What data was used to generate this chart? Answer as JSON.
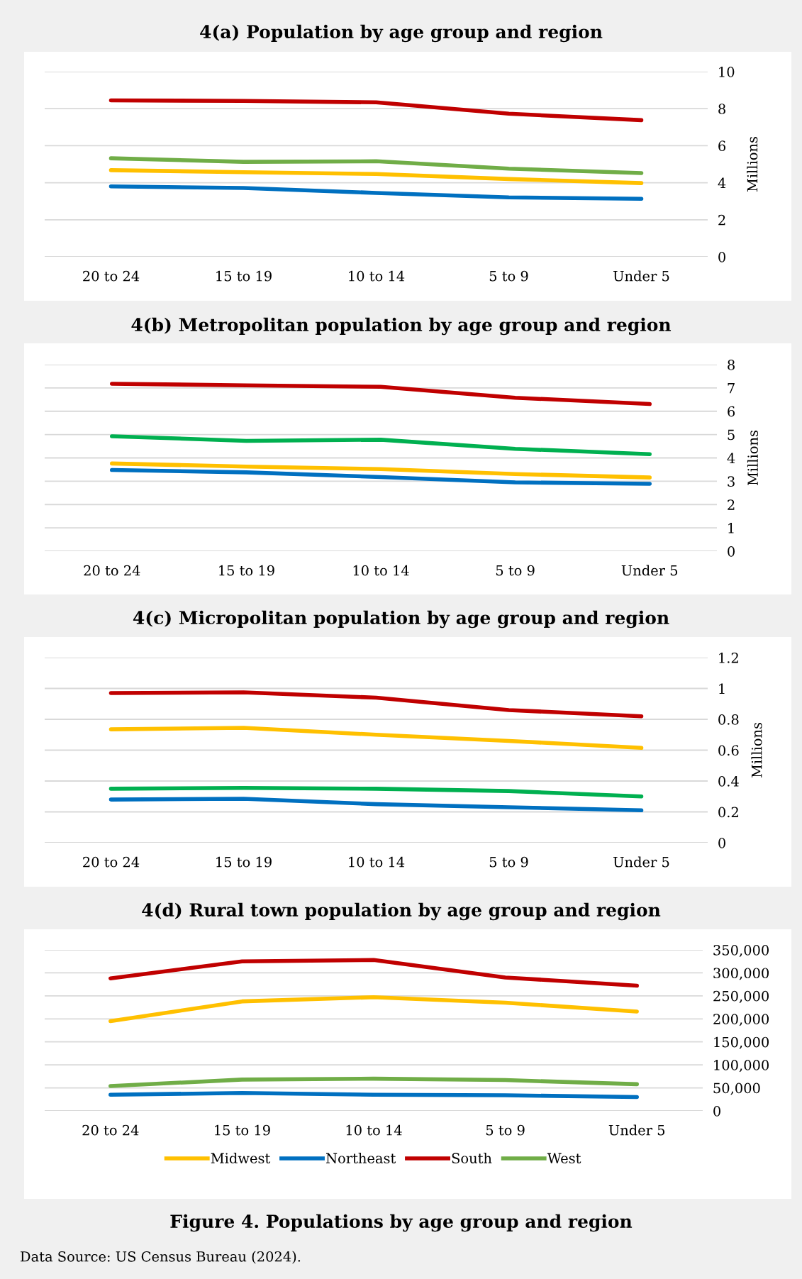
{
  "chart_data": [
    {
      "type": "line",
      "title": "4(a) Population by age group and region",
      "y2label": "Millions",
      "categories": [
        "20 to 24",
        "15 to 19",
        "10 to 14",
        "5 to 9",
        "Under 5"
      ],
      "y2lim": [
        0,
        10
      ],
      "y2ticks": [
        0,
        2,
        4,
        6,
        8,
        10
      ],
      "grid": "y",
      "series": [
        {
          "color": "#ffc000",
          "axis": "y2",
          "values": [
            4.68,
            4.57,
            4.47,
            4.2,
            3.98
          ]
        },
        {
          "color": "#0070c0",
          "axis": "y2",
          "values": [
            3.8,
            3.72,
            3.45,
            3.21,
            3.13
          ]
        },
        {
          "color": "#c00000",
          "axis": "y2",
          "values": [
            8.45,
            8.42,
            8.34,
            7.73,
            7.38
          ]
        },
        {
          "color": "#70ad47",
          "axis": "y2",
          "values": [
            5.32,
            5.13,
            5.16,
            4.76,
            4.52
          ]
        }
      ]
    },
    {
      "type": "line",
      "title": "4(b) Metropolitan population by age group and region",
      "y2label": "Millions",
      "categories": [
        "20 to 24",
        "15 to 19",
        "10 to 14",
        "5 to 9",
        "Under 5"
      ],
      "y2lim": [
        0,
        8
      ],
      "y2ticks": [
        0,
        1,
        2,
        3,
        4,
        5,
        6,
        7,
        8
      ],
      "grid": "y",
      "series": [
        {
          "color": "#ffc000",
          "axis": "y2",
          "values": [
            3.76,
            3.63,
            3.52,
            3.31,
            3.16
          ]
        },
        {
          "color": "#0070c0",
          "axis": "y2",
          "values": [
            3.48,
            3.38,
            3.18,
            2.95,
            2.89
          ]
        },
        {
          "color": "#c00000",
          "axis": "y2",
          "values": [
            7.18,
            7.11,
            7.05,
            6.58,
            6.31
          ]
        },
        {
          "color": "#00b050",
          "axis": "y2",
          "values": [
            4.93,
            4.73,
            4.78,
            4.39,
            4.16
          ]
        }
      ]
    },
    {
      "type": "line",
      "title": "4(c) Micropolitan population by age group and region",
      "y2label": "Millions",
      "categories": [
        "20 to 24",
        "15 to 19",
        "10 to 14",
        "5 to 9",
        "Under 5"
      ],
      "y2lim": [
        0,
        1.2
      ],
      "y2ticks": [
        0,
        0.2,
        0.4,
        0.6,
        0.8,
        1,
        1.2
      ],
      "grid": "y",
      "series": [
        {
          "color": "#ffc000",
          "axis": "y2",
          "values": [
            0.735,
            0.745,
            0.7,
            0.66,
            0.615
          ]
        },
        {
          "color": "#0070c0",
          "axis": "y2",
          "values": [
            0.28,
            0.285,
            0.25,
            0.23,
            0.21
          ]
        },
        {
          "color": "#c00000",
          "axis": "y2",
          "values": [
            0.97,
            0.975,
            0.94,
            0.86,
            0.82
          ]
        },
        {
          "color": "#00b050",
          "axis": "y2",
          "values": [
            0.35,
            0.355,
            0.35,
            0.335,
            0.3
          ]
        }
      ]
    },
    {
      "type": "line",
      "title": "4(d) Rural town population by age group and region",
      "categories": [
        "20 to 24",
        "15 to 19",
        "10 to 14",
        "5 to 9",
        "Under 5"
      ],
      "y2lim": [
        0,
        350000
      ],
      "y2ticks": [
        {
          "value": 0,
          "label": "0"
        },
        {
          "value": 50000,
          "label": "50,000"
        },
        {
          "value": 100000,
          "label": "100,000"
        },
        {
          "value": 150000,
          "label": "150,000"
        },
        {
          "value": 200000,
          "label": "200,000"
        },
        {
          "value": 250000,
          "label": "250,000"
        },
        {
          "value": 300000,
          "label": "300,000"
        },
        {
          "value": 350000,
          "label": "350,000"
        }
      ],
      "grid": "y",
      "legend": "bottom",
      "annotations": [
        "Figure 4. Populations by age group and region",
        "Data Source: US Census Bureau (2024)."
      ],
      "series": [
        {
          "name": "Midwest",
          "color": "#ffc000",
          "axis": "y2",
          "values": [
            195000,
            238000,
            247000,
            235000,
            216000
          ]
        },
        {
          "name": "Northeast",
          "color": "#0070c0",
          "axis": "y2",
          "values": [
            35000,
            39000,
            35000,
            34000,
            30000
          ]
        },
        {
          "name": "South",
          "color": "#c00000",
          "axis": "y2",
          "values": [
            288000,
            325000,
            328000,
            290000,
            272000
          ]
        },
        {
          "name": "West",
          "color": "#70ad47",
          "axis": "y2",
          "values": [
            54000,
            68000,
            70000,
            67000,
            58000
          ]
        }
      ]
    }
  ]
}
